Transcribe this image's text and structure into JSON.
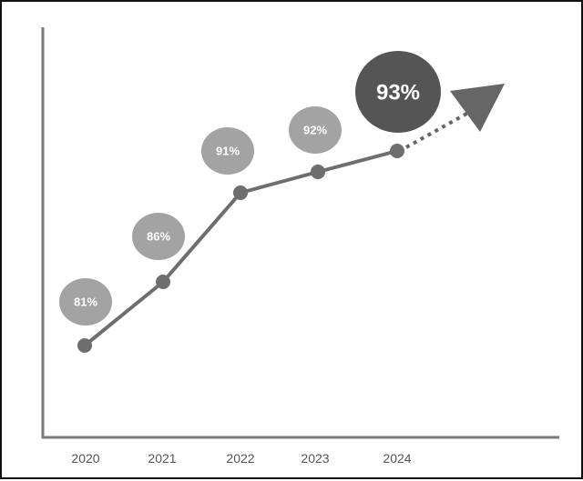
{
  "chart_data": {
    "type": "line",
    "title": "",
    "xlabel": "",
    "ylabel": "",
    "categories": [
      "2020",
      "2021",
      "2022",
      "2023",
      "2024"
    ],
    "values": [
      81,
      86,
      91,
      92,
      93
    ],
    "data_labels": [
      "81%",
      "86%",
      "91%",
      "92%",
      "93%"
    ],
    "highlighted_index": 4,
    "trend_arrow": "dotted continuation after 2024 ending in a triangle arrowhead",
    "grid": false,
    "legend": "none",
    "colors": {
      "line": "#6e6e6e",
      "point": "#6e6e6e",
      "bubble": "#a3a3a3",
      "bubble_highlight": "#555555",
      "axis": "#7a7a7a",
      "arrow": "#666666"
    }
  }
}
